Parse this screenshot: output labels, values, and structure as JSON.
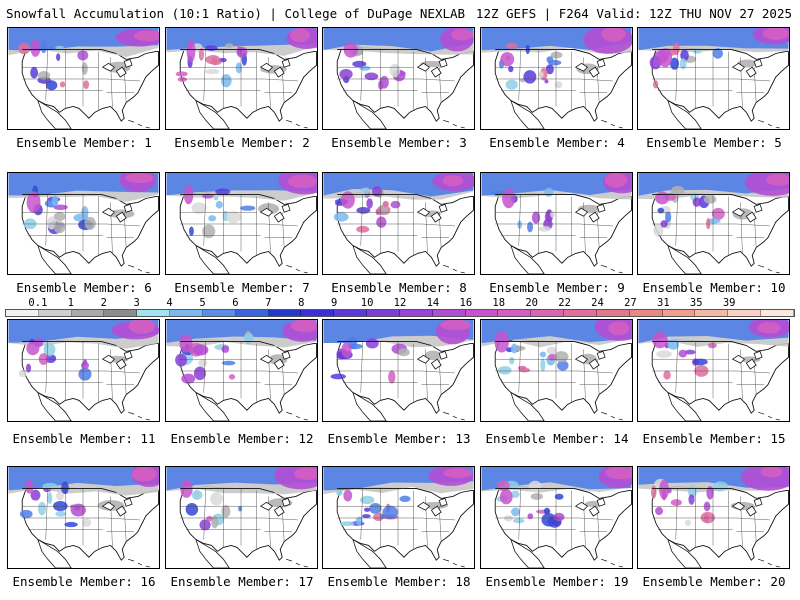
{
  "header": {
    "title": "Snowfall Accumulation (10:1 Ratio) | College of DuPage NEXLAB",
    "run_info": "12Z GEFS | F264 Valid: 12Z THU NOV 27 2025"
  },
  "colorbar": {
    "labels": [
      "0.1",
      "1",
      "2",
      "3",
      "4",
      "5",
      "6",
      "7",
      "8",
      "9",
      "10",
      "12",
      "14",
      "16",
      "18",
      "20",
      "22",
      "24",
      "27",
      "31",
      "35",
      "39"
    ],
    "colors": [
      "#f2f2f2",
      "#cfcfcf",
      "#a9a9a9",
      "#8c8c8c",
      "#9fe6ef",
      "#7ab9ef",
      "#5b8ee8",
      "#3a64e0",
      "#2438cc",
      "#3b2fd8",
      "#5a3ad8",
      "#7a3fd6",
      "#9a45d8",
      "#b24ed4",
      "#c654cc",
      "#d45ec2",
      "#d966b1",
      "#de6f9e",
      "#e0798a",
      "#e58a84",
      "#eca08d",
      "#f3b8a6",
      "#f8d3c5",
      "#fbe9df"
    ]
  },
  "panels": [
    {
      "label": "Ensemble Member: 1"
    },
    {
      "label": "Ensemble Member: 2"
    },
    {
      "label": "Ensemble Member: 3"
    },
    {
      "label": "Ensemble Member: 4"
    },
    {
      "label": "Ensemble Member: 5"
    },
    {
      "label": "Ensemble Member: 6"
    },
    {
      "label": "Ensemble Member: 7"
    },
    {
      "label": "Ensemble Member: 8"
    },
    {
      "label": "Ensemble Member: 9"
    },
    {
      "label": "Ensemble Member: 10"
    },
    {
      "label": "Ensemble Member: 11"
    },
    {
      "label": "Ensemble Member: 12"
    },
    {
      "label": "Ensemble Member: 13"
    },
    {
      "label": "Ensemble Member: 14"
    },
    {
      "label": "Ensemble Member: 15"
    },
    {
      "label": "Ensemble Member: 16"
    },
    {
      "label": "Ensemble Member: 17"
    },
    {
      "label": "Ensemble Member: 18"
    },
    {
      "label": "Ensemble Member: 19"
    },
    {
      "label": "Ensemble Member: 20"
    }
  ]
}
